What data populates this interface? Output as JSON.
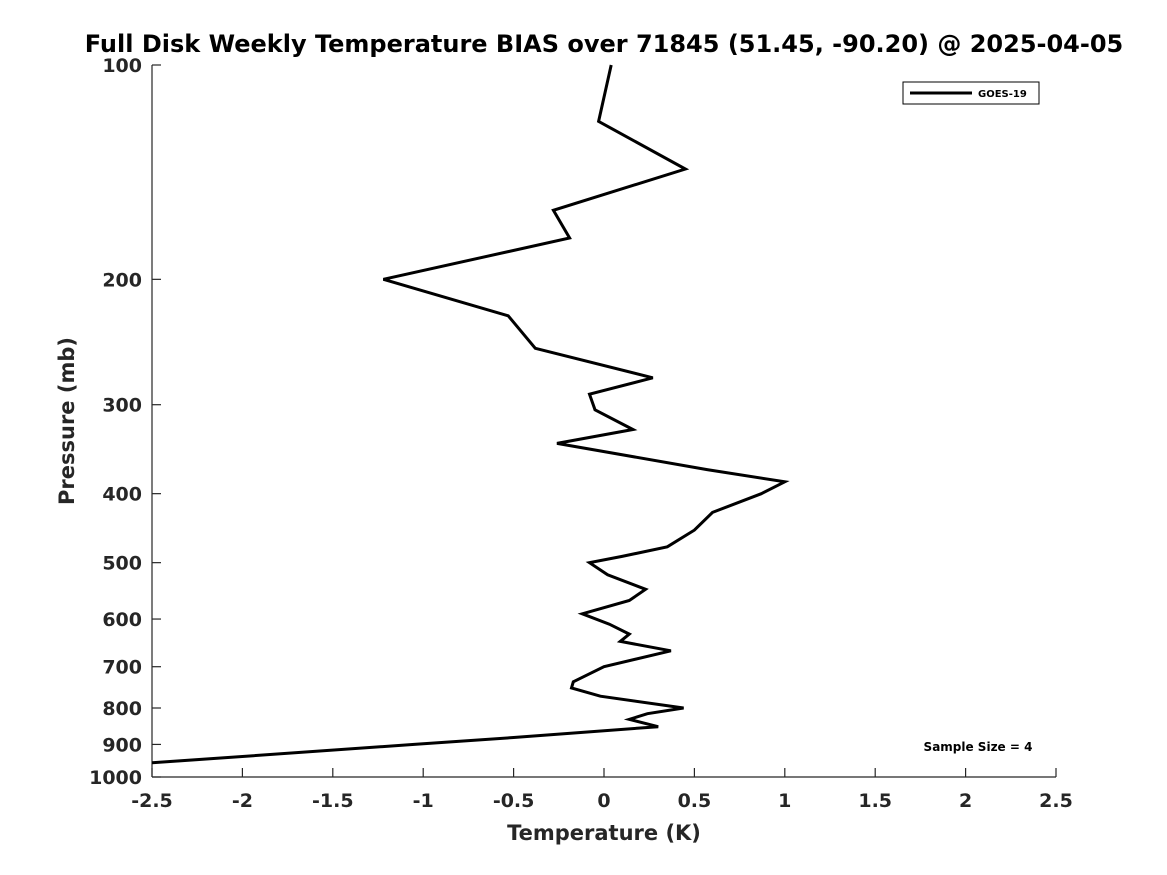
{
  "chart_data": {
    "type": "line",
    "title": "Full Disk Weekly Temperature BIAS over 71845 (51.45, -90.20) @ 2025-04-05",
    "xlabel": "Temperature (K)",
    "ylabel": "Pressure (mb)",
    "xlim": [
      -2.5,
      2.5
    ],
    "ylim": [
      100,
      1000
    ],
    "y_scale": "log",
    "y_reversed": true,
    "grid": false,
    "x_ticks": [
      -2.5,
      -2,
      -1.5,
      -1,
      -0.5,
      0,
      0.5,
      1,
      1.5,
      2,
      2.5
    ],
    "x_tick_labels": [
      "-2.5",
      "-2",
      "-1.5",
      "-1",
      "-0.5",
      "0",
      "0.5",
      "1",
      "1.5",
      "2",
      "2.5"
    ],
    "y_ticks": [
      100,
      200,
      300,
      400,
      500,
      600,
      700,
      800,
      900,
      1000
    ],
    "y_tick_labels": [
      "100",
      "200",
      "300",
      "400",
      "500",
      "600",
      "700",
      "800",
      "900",
      "1000"
    ],
    "legend_position": "top-right",
    "annotation": "Sample Size = 4",
    "series": [
      {
        "name": "GOES-19",
        "color": "#000000",
        "points": [
          {
            "x": 0.04,
            "p": 100
          },
          {
            "x": -0.03,
            "p": 120
          },
          {
            "x": 0.45,
            "p": 140
          },
          {
            "x": -0.28,
            "p": 160
          },
          {
            "x": -0.19,
            "p": 175
          },
          {
            "x": -1.22,
            "p": 200
          },
          {
            "x": -0.53,
            "p": 225
          },
          {
            "x": -0.38,
            "p": 250
          },
          {
            "x": 0.27,
            "p": 275
          },
          {
            "x": -0.08,
            "p": 290
          },
          {
            "x": -0.05,
            "p": 305
          },
          {
            "x": 0.16,
            "p": 325
          },
          {
            "x": -0.26,
            "p": 340
          },
          {
            "x": 0.57,
            "p": 370
          },
          {
            "x": 1.0,
            "p": 385
          },
          {
            "x": 0.87,
            "p": 400
          },
          {
            "x": 0.6,
            "p": 425
          },
          {
            "x": 0.5,
            "p": 450
          },
          {
            "x": 0.35,
            "p": 475
          },
          {
            "x": 0.1,
            "p": 490
          },
          {
            "x": -0.08,
            "p": 500
          },
          {
            "x": 0.02,
            "p": 520
          },
          {
            "x": 0.23,
            "p": 545
          },
          {
            "x": 0.14,
            "p": 565
          },
          {
            "x": -0.12,
            "p": 590
          },
          {
            "x": 0.03,
            "p": 610
          },
          {
            "x": 0.14,
            "p": 630
          },
          {
            "x": 0.09,
            "p": 645
          },
          {
            "x": 0.37,
            "p": 665
          },
          {
            "x": 0.0,
            "p": 700
          },
          {
            "x": -0.17,
            "p": 735
          },
          {
            "x": -0.18,
            "p": 750
          },
          {
            "x": -0.02,
            "p": 770
          },
          {
            "x": 0.44,
            "p": 800
          },
          {
            "x": 0.24,
            "p": 815
          },
          {
            "x": 0.14,
            "p": 830
          },
          {
            "x": 0.3,
            "p": 850
          },
          {
            "x": -0.5,
            "p": 880
          },
          {
            "x": -1.05,
            "p": 900
          },
          {
            "x": -2.5,
            "p": 955
          }
        ]
      }
    ]
  }
}
